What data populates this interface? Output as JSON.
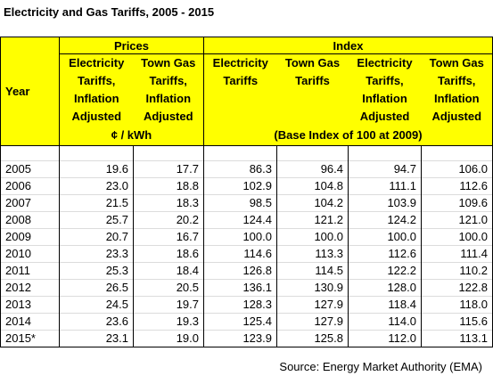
{
  "title": "Electricity and Gas Tariffs, 2005 - 2015",
  "headers": {
    "year": "Year",
    "prices_group": "Prices",
    "index_group": "Index",
    "col1": [
      "Electricity",
      "Tariffs,",
      "Inflation",
      "Adjusted"
    ],
    "col2": [
      "Town Gas",
      "Tariffs,",
      "Inflation",
      "Adjusted"
    ],
    "col3": [
      "Electricity",
      "Tariffs"
    ],
    "col4": [
      "Town Gas",
      "Tariffs"
    ],
    "col5": [
      "Electricity",
      "Tariffs,",
      "Inflation",
      "Adjusted"
    ],
    "col6": [
      "Town Gas",
      "Tariffs,",
      "Inflation",
      "Adjusted"
    ],
    "prices_unit": "¢ / kWh",
    "index_note": "(Base Index of 100 at 2009)"
  },
  "rows": [
    {
      "year": "2005",
      "v": [
        "19.6",
        "17.7",
        "86.3",
        "96.4",
        "94.7",
        "106.0"
      ]
    },
    {
      "year": "2006",
      "v": [
        "23.0",
        "18.8",
        "102.9",
        "104.8",
        "111.1",
        "112.6"
      ]
    },
    {
      "year": "2007",
      "v": [
        "21.5",
        "18.3",
        "98.5",
        "104.2",
        "103.9",
        "109.6"
      ]
    },
    {
      "year": "2008",
      "v": [
        "25.7",
        "20.2",
        "124.4",
        "121.2",
        "124.2",
        "121.0"
      ]
    },
    {
      "year": "2009",
      "v": [
        "20.7",
        "16.7",
        "100.0",
        "100.0",
        "100.0",
        "100.0"
      ]
    },
    {
      "year": "2010",
      "v": [
        "23.3",
        "18.6",
        "114.6",
        "113.3",
        "112.6",
        "111.4"
      ]
    },
    {
      "year": "2011",
      "v": [
        "25.3",
        "18.4",
        "126.8",
        "114.5",
        "122.2",
        "110.2"
      ]
    },
    {
      "year": "2012",
      "v": [
        "26.5",
        "20.5",
        "136.1",
        "130.9",
        "128.0",
        "122.8"
      ]
    },
    {
      "year": "2013",
      "v": [
        "24.5",
        "19.7",
        "128.3",
        "127.9",
        "118.4",
        "118.0"
      ]
    },
    {
      "year": "2014",
      "v": [
        "23.6",
        "19.3",
        "125.4",
        "127.9",
        "114.0",
        "115.6"
      ]
    },
    {
      "year": "2015*",
      "v": [
        "23.1",
        "19.0",
        "123.9",
        "125.8",
        "112.0",
        "113.1"
      ]
    }
  ],
  "source": "Source: Energy Market Authority (EMA)"
}
